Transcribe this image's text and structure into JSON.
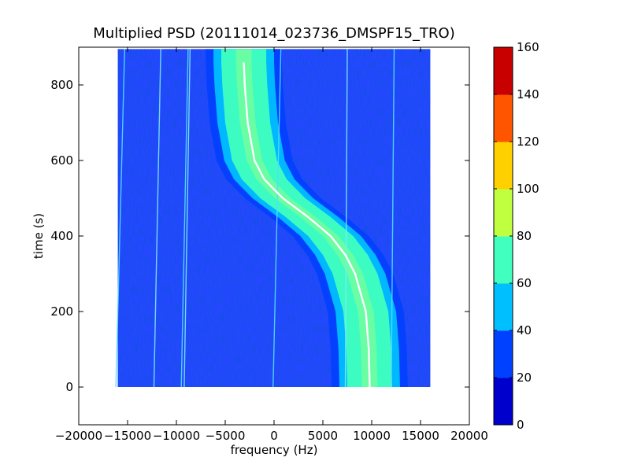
{
  "chart_data": {
    "type": "heatmap",
    "title": "Multiplied PSD (20111014_023736_DMSPF15_TRO)",
    "xlabel": "frequency (Hz)",
    "ylabel": "time (s)",
    "xlim": [
      -20000,
      20000
    ],
    "ylim": [
      -100,
      900
    ],
    "x_ticks": [
      -20000,
      -15000,
      -10000,
      -5000,
      0,
      5000,
      10000,
      15000,
      20000
    ],
    "x_tick_labels": [
      "−20000",
      "−15000",
      "−10000",
      "−5000",
      "0",
      "5000",
      "10000",
      "15000",
      "20000"
    ],
    "y_ticks": [
      0,
      200,
      400,
      600,
      800
    ],
    "y_tick_labels": [
      "0",
      "200",
      "400",
      "600",
      "800"
    ],
    "data_extent": {
      "x": [
        -16000,
        16000
      ],
      "y": [
        0,
        895
      ]
    },
    "colorbar": {
      "ticks": [
        0,
        20,
        40,
        60,
        80,
        100,
        120,
        140,
        160
      ],
      "tick_labels": [
        "0",
        "20",
        "40",
        "60",
        "80",
        "100",
        "120",
        "140",
        "160"
      ],
      "colors": [
        "#0000cd",
        "#0040ff",
        "#00bfff",
        "#40ffbf",
        "#bfff40",
        "#ffd000",
        "#ff5500",
        "#c80000"
      ]
    },
    "signal_trace": {
      "t": [
        0,
        100,
        200,
        300,
        350,
        400,
        450,
        500,
        550,
        600,
        700,
        800,
        860
      ],
      "f": [
        9800,
        9700,
        9400,
        8300,
        7300,
        5800,
        3500,
        900,
        -1000,
        -2000,
        -2700,
        -3000,
        -3100
      ]
    },
    "spurious_lines": [
      {
        "f0": -16200,
        "f1": -15300
      },
      {
        "f0": -12300,
        "f1": -11600
      },
      {
        "f0": -9500,
        "f1": -8800
      },
      {
        "f0": -9200,
        "f1": -8600
      },
      {
        "f0": -100,
        "f1": 700
      },
      {
        "f0": 7300,
        "f1": 7500
      },
      {
        "f0": 12000,
        "f1": 12300
      }
    ]
  }
}
